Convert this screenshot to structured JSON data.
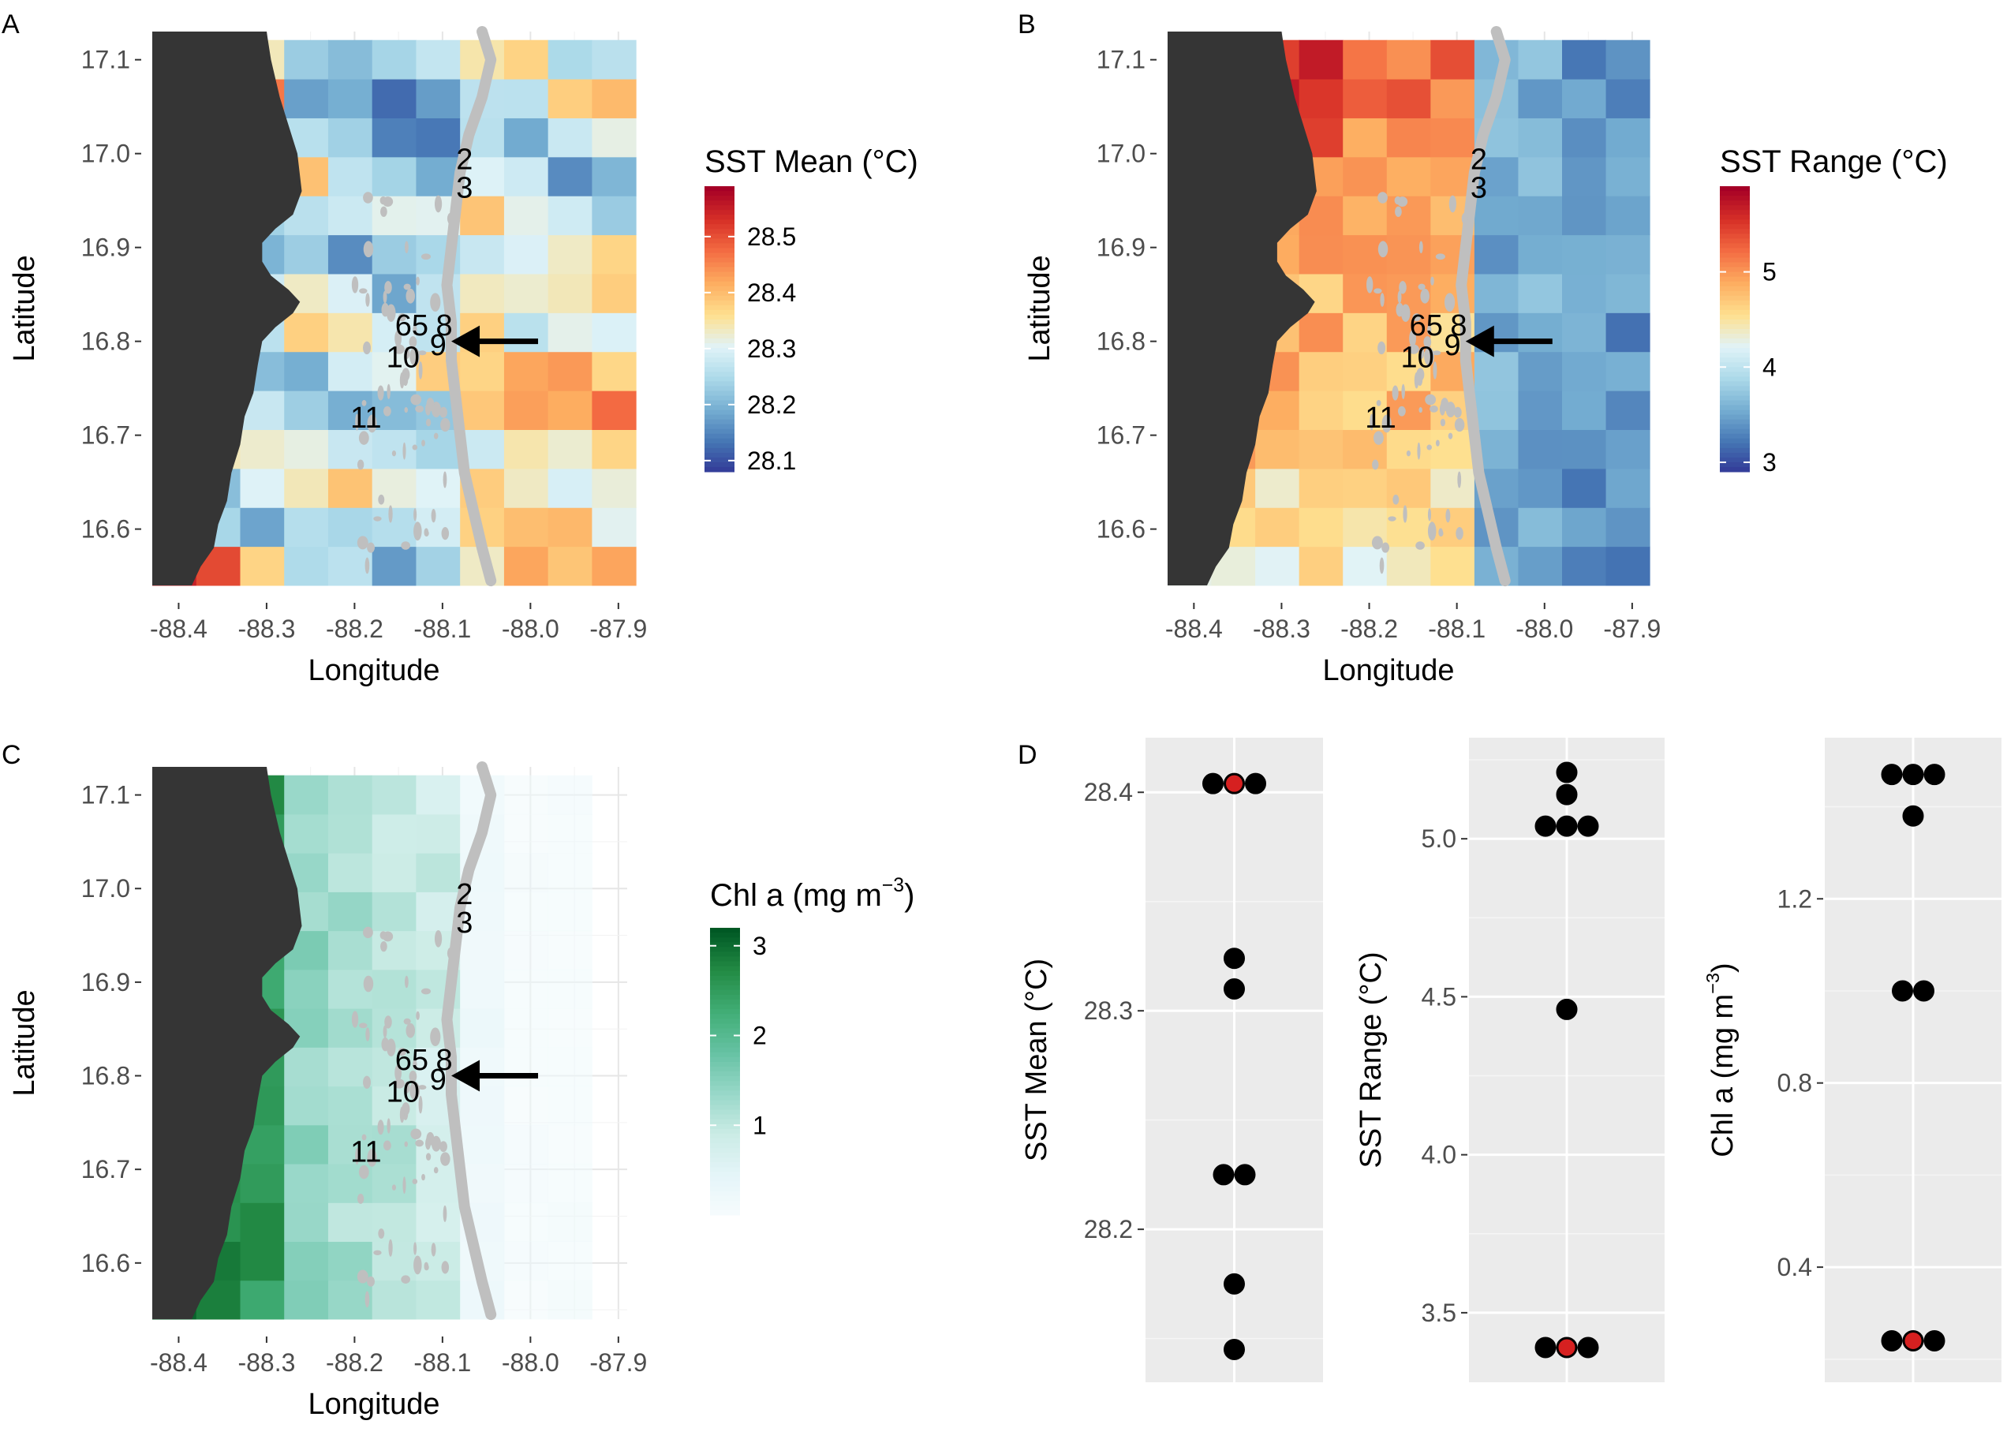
{
  "chart_data": [
    {
      "panel": "A",
      "type": "heatmap",
      "xlabel": "Longitude",
      "ylabel": "Latitude",
      "x_ticks": [
        "-88.4",
        "-88.3",
        "-88.2",
        "-88.1",
        "-88.0",
        "-87.9"
      ],
      "y_ticks": [
        "17.1",
        "17.0",
        "16.9",
        "16.8",
        "16.7",
        "16.6"
      ],
      "xlim": [
        -88.43,
        -87.89
      ],
      "ylim": [
        16.54,
        17.13
      ],
      "legend": {
        "title": "SST Mean (°C)",
        "palette": "RdYlBu",
        "range": [
          28.08,
          28.59
        ],
        "ticks": [
          "28.5",
          "28.4",
          "28.3",
          "28.2",
          "28.1"
        ]
      },
      "site_labels": [
        "2",
        "3",
        "65",
        "8",
        "9",
        "10",
        "11"
      ],
      "arrow_target": [
        -88.09,
        16.8
      ]
    },
    {
      "panel": "B",
      "type": "heatmap",
      "xlabel": "Longitude",
      "ylabel": "Latitude",
      "x_ticks": [
        "-88.4",
        "-88.3",
        "-88.2",
        "-88.1",
        "-88.0",
        "-87.9"
      ],
      "y_ticks": [
        "17.1",
        "17.0",
        "16.9",
        "16.8",
        "16.7",
        "16.6"
      ],
      "xlim": [
        -88.43,
        -87.89
      ],
      "ylim": [
        16.54,
        17.13
      ],
      "legend": {
        "title": "SST Range (°C)",
        "palette": "RdYlBu",
        "range": [
          2.9,
          5.9
        ],
        "ticks": [
          "5",
          "4",
          "3"
        ]
      },
      "site_labels": [
        "2",
        "3",
        "65",
        "8",
        "9",
        "10",
        "11"
      ],
      "arrow_target": [
        -88.09,
        16.8
      ]
    },
    {
      "panel": "C",
      "type": "heatmap",
      "xlabel": "Longitude",
      "ylabel": "Latitude",
      "x_ticks": [
        "-88.4",
        "-88.3",
        "-88.2",
        "-88.1",
        "-88.0",
        "-87.9"
      ],
      "y_ticks": [
        "17.1",
        "17.0",
        "16.9",
        "16.8",
        "16.7",
        "16.6"
      ],
      "xlim": [
        -88.43,
        -87.89
      ],
      "ylim": [
        16.54,
        17.13
      ],
      "legend": {
        "title_main": "Chl a (mg m",
        "title_sup": "−3",
        "title_end": ")",
        "palette": "Greens",
        "range": [
          0,
          3.2
        ],
        "ticks": [
          "3",
          "2",
          "1"
        ]
      },
      "site_labels": [
        "2",
        "3",
        "65",
        "8",
        "9",
        "10",
        "11"
      ],
      "arrow_target": [
        -88.09,
        16.8
      ]
    },
    {
      "panel": "D",
      "type": "scatter",
      "subplots": [
        {
          "ylabel": "SST Mean (°C)",
          "ylim": [
            28.13,
            28.425
          ],
          "ticks": [
            28.2,
            28.3,
            28.4
          ],
          "tick_labels": [
            "28.2",
            "28.3",
            "28.4"
          ],
          "points": [
            28.404,
            28.404,
            28.404,
            28.324,
            28.31,
            28.225,
            28.225,
            28.175,
            28.145
          ],
          "highlight_index": 1
        },
        {
          "ylabel": "SST Range (°C)",
          "ylim": [
            3.28,
            5.32
          ],
          "ticks": [
            3.5,
            4.0,
            4.5,
            5.0
          ],
          "tick_labels": [
            "3.5",
            "4.0",
            "4.5",
            "5.0"
          ],
          "points": [
            5.21,
            5.14,
            5.04,
            5.04,
            5.04,
            4.46,
            3.39,
            3.39,
            3.39
          ],
          "highlight_index": 7
        },
        {
          "ylabel_main": "Chl a (mg m",
          "ylabel_sup": "−3",
          "ylabel_end": ")",
          "ylim": [
            0.15,
            1.55
          ],
          "ticks": [
            0.4,
            0.8,
            1.2
          ],
          "tick_labels": [
            "0.4",
            "0.8",
            "1.2"
          ],
          "points": [
            1.47,
            1.47,
            1.47,
            1.38,
            1.0,
            1.0,
            0.24,
            0.24,
            0.24
          ],
          "highlight_index": 7
        }
      ]
    }
  ],
  "colors": {
    "land": "#353535",
    "reef": "#bfbfbf",
    "panel_bg": "#ebebeb",
    "grid": "#ffffff",
    "point": "#000000",
    "highlight": "#d62020"
  }
}
